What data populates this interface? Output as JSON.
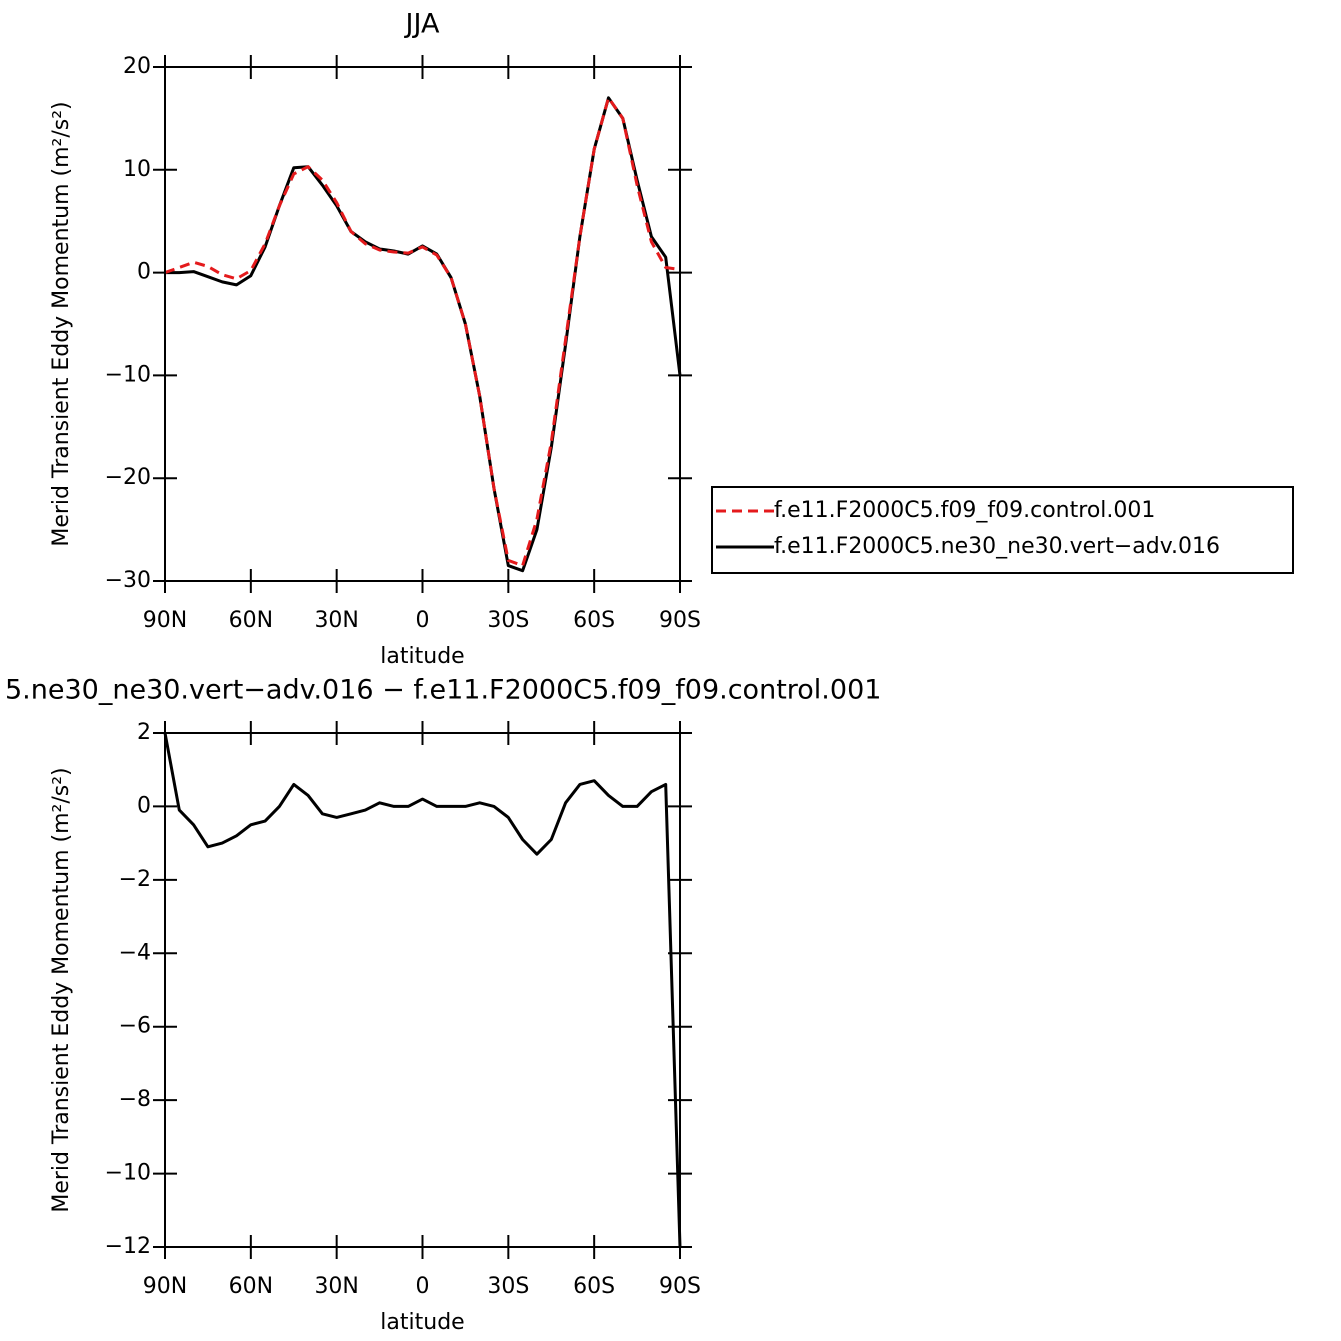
{
  "chart_data": [
    {
      "type": "line",
      "title": "JJA",
      "xlabel": "latitude",
      "ylabel": "Merid Transient Eddy Momentum  (m²/s²)",
      "x": [
        90,
        85,
        80,
        75,
        70,
        65,
        60,
        55,
        50,
        45,
        40,
        35,
        30,
        25,
        20,
        15,
        10,
        5,
        0,
        -5,
        -10,
        -15,
        -20,
        -25,
        -30,
        -35,
        -40,
        -45,
        -50,
        -55,
        -60,
        -65,
        -70,
        -75,
        -80,
        -85,
        -90
      ],
      "xlim": [
        90,
        -90
      ],
      "xticks": [
        {
          "value": 90,
          "label": "90N"
        },
        {
          "value": 60,
          "label": "60N"
        },
        {
          "value": 30,
          "label": "30N"
        },
        0,
        {
          "value": -30,
          "label": "30S"
        },
        {
          "value": -60,
          "label": "60S"
        },
        {
          "value": -90,
          "label": "90S"
        }
      ],
      "ylim": [
        -30,
        20
      ],
      "yticks": [
        {
          "value": -30,
          "label": "−30"
        },
        {
          "value": -20,
          "label": "−20"
        },
        {
          "value": -10,
          "label": "−10"
        },
        0,
        10,
        20
      ],
      "legend": "right",
      "series": [
        {
          "name": "f.e11.F2000C5.f09_f09.control.001",
          "color": "#e41a1c",
          "dashed": true,
          "values": [
            0,
            0.5,
            1,
            0.6,
            -0.2,
            -0.6,
            0.2,
            2.8,
            6.5,
            9.6,
            10.3,
            9,
            6.8,
            4,
            2.8,
            2.2,
            2,
            1.9,
            2.5,
            1.7,
            -0.5,
            -5,
            -12,
            -21,
            -28,
            -28.5,
            -24,
            -16.5,
            -6.5,
            3.5,
            12,
            17,
            15,
            8.5,
            3,
            0.5,
            0.3
          ]
        },
        {
          "name": "f.e11.F2000C5.ne30_ne30.vert−adv.016",
          "color": "#000000",
          "dashed": false,
          "values": [
            0,
            0,
            0.1,
            -0.4,
            -0.9,
            -1.2,
            -0.3,
            2.5,
            6.5,
            10.2,
            10.3,
            8.5,
            6.5,
            4,
            3,
            2.3,
            2.1,
            1.8,
            2.6,
            1.8,
            -0.5,
            -5,
            -12,
            -21,
            -28.5,
            -29,
            -25,
            -17,
            -7,
            3.5,
            12,
            17,
            15,
            9,
            3.5,
            1.5,
            -10
          ]
        }
      ]
    },
    {
      "type": "line",
      "title": "5.ne30_ne30.vert−adv.016 − f.e11.F2000C5.f09_f09.control.001",
      "xlabel": "latitude",
      "ylabel": "Merid Transient Eddy Momentum  (m²/s²)",
      "x": [
        90,
        85,
        80,
        75,
        70,
        65,
        60,
        55,
        50,
        45,
        40,
        35,
        30,
        25,
        20,
        15,
        10,
        5,
        0,
        -5,
        -10,
        -15,
        -20,
        -25,
        -30,
        -35,
        -40,
        -45,
        -50,
        -55,
        -60,
        -65,
        -70,
        -75,
        -80,
        -85,
        -90
      ],
      "xlim": [
        90,
        -90
      ],
      "xticks": [
        {
          "value": 90,
          "label": "90N"
        },
        {
          "value": 60,
          "label": "60N"
        },
        {
          "value": 30,
          "label": "30N"
        },
        0,
        {
          "value": -30,
          "label": "30S"
        },
        {
          "value": -60,
          "label": "60S"
        },
        {
          "value": -90,
          "label": "90S"
        }
      ],
      "ylim": [
        -12,
        2
      ],
      "yticks": [
        {
          "value": -12,
          "label": "−12"
        },
        {
          "value": -10,
          "label": "−10"
        },
        {
          "value": -8,
          "label": "−8"
        },
        {
          "value": -6,
          "label": "−6"
        },
        {
          "value": -4,
          "label": "−4"
        },
        {
          "value": -2,
          "label": "−2"
        },
        0,
        2
      ],
      "color": "#000000",
      "values": [
        2,
        -0.1,
        -0.5,
        -1.1,
        -1.0,
        -0.8,
        -0.5,
        -0.4,
        0,
        0.6,
        0.3,
        -0.2,
        -0.3,
        -0.2,
        -0.1,
        0.1,
        0,
        0,
        0.2,
        0,
        0,
        0,
        0.1,
        0,
        -0.3,
        -0.9,
        -1.3,
        -0.9,
        0.1,
        0.6,
        0.7,
        0.3,
        0,
        0,
        0.4,
        0.6,
        -12
      ]
    }
  ]
}
